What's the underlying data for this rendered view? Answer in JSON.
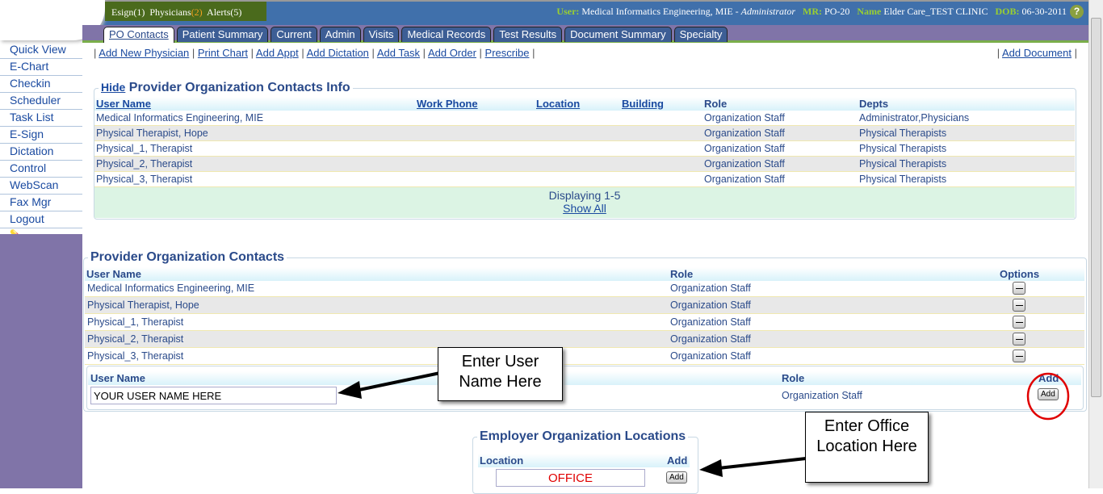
{
  "header": {
    "esign_label": "Esign",
    "esign_count": "(1)",
    "physicians_label": "Physicians",
    "physicians_count": "(2)",
    "alerts_label": "Alerts",
    "alerts_count": "(5)",
    "user_label": "User:",
    "user_value": "Medical Informatics Engineering, MIE - ",
    "user_role": "Administrator",
    "mr_label": "MR:",
    "mr_value": "PO-20",
    "name_label": "Name",
    "name_value": "Elder Care_TEST CLINIC",
    "dob_label": "DOB:",
    "dob_value": "06-30-2011",
    "help_icon": "?"
  },
  "tabs": [
    "PO Contacts",
    "Patient Summary",
    "Current",
    "Admin",
    "Visits",
    "Medical Records",
    "Test Results",
    "Document Summary",
    "Specialty"
  ],
  "sidebar": [
    "Quick View",
    "E-Chart",
    "Checkin",
    "Scheduler",
    "Task List",
    "E-Sign",
    "Dictation",
    "Control",
    "WebScan",
    "Fax Mgr",
    "Logout"
  ],
  "actions": [
    "Add New Physician",
    "Print Chart",
    "Add Appt",
    "Add Dictation",
    "Add Task",
    "Add Order",
    "Prescribe"
  ],
  "add_document": "Add Document",
  "info": {
    "hide": "Hide",
    "title": "Provider Organization Contacts Info",
    "columns": [
      "User Name",
      "Work Phone",
      "Location",
      "Building",
      "Role",
      "Depts"
    ],
    "rows": [
      [
        "Medical Informatics Engineering, MIE",
        "",
        "",
        "",
        "Organization Staff",
        "Administrator,Physicians"
      ],
      [
        "Physical Therapist, Hope",
        "",
        "",
        "",
        "Organization Staff",
        "Physical Therapists"
      ],
      [
        "Physical_1, Therapist",
        "",
        "",
        "",
        "Organization Staff",
        "Physical Therapists"
      ],
      [
        "Physical_2, Therapist",
        "",
        "",
        "",
        "Organization Staff",
        "Physical Therapists"
      ],
      [
        "Physical_3, Therapist",
        "",
        "",
        "",
        "Organization Staff",
        "Physical Therapists"
      ]
    ],
    "displaying": "Displaying 1-5",
    "show_all": "Show All"
  },
  "contacts": {
    "title": "Provider Organization Contacts",
    "columns": [
      "User Name",
      "Role",
      "Options"
    ],
    "rows": [
      [
        "Medical Informatics Engineering, MIE",
        "Organization Staff"
      ],
      [
        "Physical Therapist, Hope",
        "Organization Staff"
      ],
      [
        "Physical_1, Therapist",
        "Organization Staff"
      ],
      [
        "Physical_2, Therapist",
        "Organization Staff"
      ],
      [
        "Physical_3, Therapist",
        "Organization Staff"
      ]
    ],
    "add_columns": [
      "User Name",
      "Role",
      "Add"
    ],
    "user_input": "YOUR USER NAME HERE",
    "add_role": "Organization Staff",
    "add_button": "Add"
  },
  "locations": {
    "title": "Employer Organization Locations",
    "columns": [
      "Location",
      "Add"
    ],
    "location_input": "OFFICE",
    "add_button": "Add"
  },
  "callouts": {
    "user": "Enter User Name Here",
    "office": "Enter Office Location Here"
  },
  "colors": {
    "topbar": "#4070ab",
    "tabrow": "#8074a8",
    "alertbar": "#4a6a1c",
    "annotation": "#e00000"
  }
}
